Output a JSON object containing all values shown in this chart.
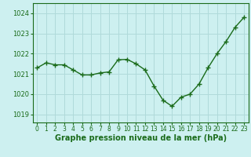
{
  "x": [
    0,
    1,
    2,
    3,
    4,
    5,
    6,
    7,
    8,
    9,
    10,
    11,
    12,
    13,
    14,
    15,
    16,
    17,
    18,
    19,
    20,
    21,
    22,
    23
  ],
  "y": [
    1021.3,
    1021.55,
    1021.45,
    1021.45,
    1021.2,
    1020.95,
    1020.95,
    1021.05,
    1021.1,
    1021.7,
    1021.72,
    1021.5,
    1021.2,
    1020.4,
    1019.7,
    1019.4,
    1019.85,
    1020.0,
    1020.5,
    1021.3,
    1022.0,
    1022.6,
    1023.3,
    1023.8
  ],
  "line_color": "#1a6b1a",
  "marker": "+",
  "marker_size": 4,
  "linewidth": 1.0,
  "bg_color": "#cdf0f0",
  "grid_color": "#b0dada",
  "xlabel": "Graphe pression niveau de la mer (hPa)",
  "xlabel_color": "#1a6b1a",
  "xlabel_fontsize": 7.0,
  "xlabel_fontweight": "bold",
  "yticks": [
    1019,
    1020,
    1021,
    1022,
    1023,
    1024
  ],
  "xtick_labels": [
    "0",
    "1",
    "2",
    "3",
    "4",
    "5",
    "6",
    "7",
    "8",
    "9",
    "10",
    "11",
    "12",
    "13",
    "14",
    "15",
    "16",
    "17",
    "18",
    "19",
    "20",
    "21",
    "22",
    "23"
  ],
  "ylim": [
    1018.6,
    1024.5
  ],
  "xlim": [
    -0.5,
    23.5
  ],
  "tick_color": "#1a6b1a",
  "ytick_fontsize": 6.0,
  "xtick_fontsize": 5.5,
  "spine_color": "#1a6b1a"
}
